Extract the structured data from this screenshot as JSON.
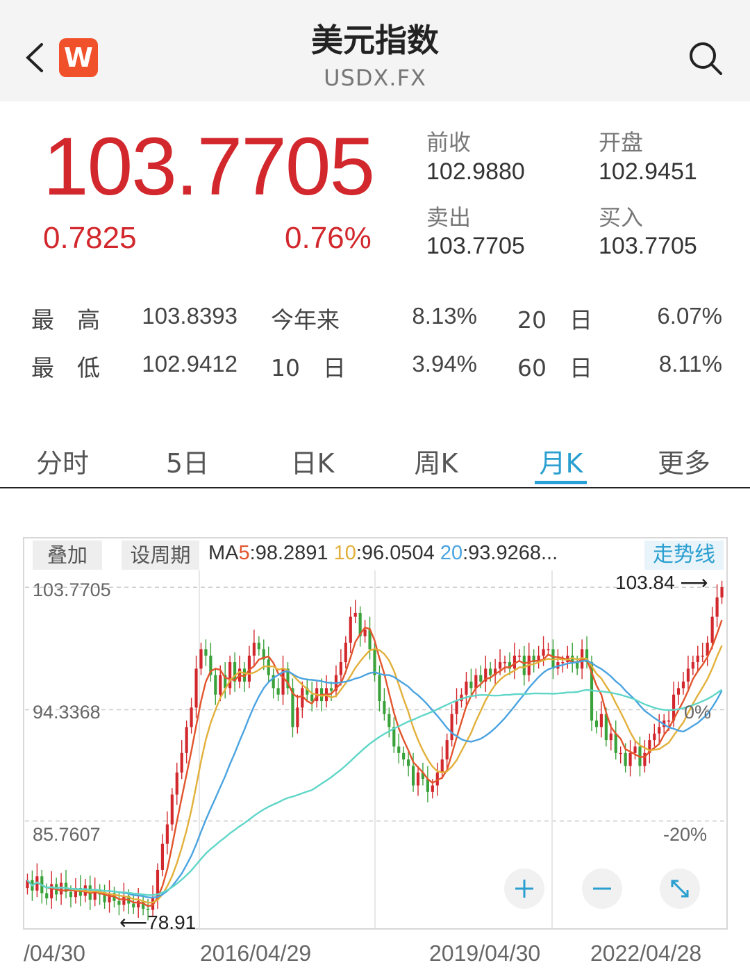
{
  "header": {
    "title": "美元指数",
    "symbol": "USDX.FX",
    "logo_letter": "W",
    "logo_color": "#f0502a"
  },
  "quote": {
    "price": "103.7705",
    "change": "0.7825",
    "change_pct": "0.76%",
    "prev_close_label": "前收",
    "prev_close": "102.9880",
    "open_label": "开盘",
    "open": "102.9451",
    "ask_label": "卖出",
    "ask": "103.7705",
    "bid_label": "买入",
    "bid": "103.7705",
    "up_color": "#d2272c"
  },
  "stats": {
    "high_label": "最　高",
    "high": "103.8393",
    "low_label": "最　低",
    "low": "102.9412",
    "ytd_label": "今年来",
    "ytd": "8.13%",
    "d10_label": "10　日",
    "d10": "3.94%",
    "d20_label": "20　日",
    "d20": "6.07%",
    "d60_label": "60　日",
    "d60": "8.11%"
  },
  "tabs": [
    "分时",
    "5日",
    "日K",
    "周K",
    "月K",
    "更多"
  ],
  "active_tab": "月K",
  "chart_toolbar": {
    "overlay": "叠加",
    "period": "设周期",
    "ma_prefix": "MA",
    "ma5_key": "5",
    "ma5_value": ":98.2891",
    "ma10_key": "10",
    "ma10_value": ":96.0504",
    "ma20_key": "20",
    "ma20_value": ":93.9268...",
    "trendline": "走势线"
  },
  "chart_data": {
    "type": "candlestick",
    "y_labels": [
      "103.7705",
      "94.3368",
      "85.7607"
    ],
    "pct_labels": [
      "0%",
      "-20%"
    ],
    "x_labels": [
      "/04/30",
      "2016/04/29",
      "2019/04/30",
      "2022/04/28"
    ],
    "max_label": "103.84",
    "min_label": "78.91",
    "ylim": [
      77.5,
      104.8
    ],
    "series_colors": {
      "ma5": "#e2542c",
      "ma10": "#e2b03a",
      "ma20": "#4aa3e0",
      "ma60": "#5fd6c8",
      "up": "#d2272c",
      "down": "#3aa23a"
    },
    "monthly_close": [
      81.2,
      80.4,
      81.5,
      80.2,
      79.8,
      80.9,
      80.1,
      81.0,
      80.3,
      79.9,
      80.6,
      80.0,
      80.8,
      79.7,
      80.4,
      80.1,
      79.5,
      80.2,
      79.6,
      79.3,
      80.0,
      79.4,
      79.1,
      79.6,
      79.0,
      78.91,
      79.8,
      82.0,
      84.0,
      85.5,
      87.8,
      89.5,
      91.0,
      93.0,
      94.5,
      97.5,
      99.0,
      98.5,
      97.0,
      95.5,
      97.0,
      96.0,
      98.0,
      96.5,
      97.5,
      96.5,
      98.5,
      99.5,
      99.0,
      98.2,
      97.0,
      96.0,
      95.5,
      97.5,
      96.0,
      93.0,
      94.5,
      96.0,
      95.5,
      95.0,
      96.0,
      95.0,
      96.0,
      95.8,
      97.0,
      98.0,
      99.5,
      101.5,
      101.8,
      100.0,
      100.5,
      99.0,
      97.0,
      95.0,
      94.0,
      93.0,
      91.5,
      91.0,
      90.5,
      90.0,
      88.5,
      89.5,
      89.0,
      88.0,
      88.5,
      89.5,
      90.5,
      92.0,
      94.0,
      95.0,
      95.5,
      96.5,
      96.0,
      97.0,
      96.5,
      97.5,
      97.0,
      97.5,
      98.0,
      98.0,
      97.5,
      98.5,
      98.5,
      97.0,
      98.5,
      98.0,
      98.5,
      99.0,
      99.0,
      97.5,
      98.0,
      98.0,
      98.5,
      98.0,
      97.5,
      99.0,
      98.0,
      93.5,
      93.0,
      94.0,
      92.0,
      92.5,
      91.0,
      91.0,
      90.0,
      91.0,
      91.5,
      90.0,
      91.0,
      92.0,
      92.5,
      93.0,
      93.5,
      93.5,
      95.5,
      96.0,
      96.5,
      97.5,
      98.0,
      98.5,
      98.5,
      99.5,
      101.5,
      102.99,
      103.77
    ]
  }
}
